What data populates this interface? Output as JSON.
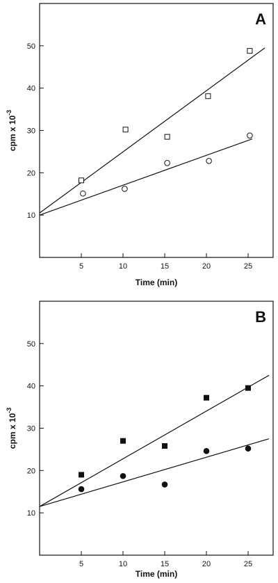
{
  "chart_data": [
    {
      "type": "scatter",
      "panel_label": "A",
      "xlabel": "Time (min)",
      "ylabel": "cpm x 10",
      "ylabel_exponent": "-3",
      "xlim": [
        0,
        28
      ],
      "ylim": [
        0,
        60
      ],
      "xticks": [
        "5",
        "10",
        "15",
        "20",
        "25"
      ],
      "yticks": [
        "10",
        "20",
        "30",
        "40",
        "50"
      ],
      "grid": false,
      "series": [
        {
          "marker": "open-square",
          "points": [
            {
              "x": 5,
              "y": 18.2
            },
            {
              "x": 10.3,
              "y": 30.2
            },
            {
              "x": 15.3,
              "y": 28.5
            },
            {
              "x": 20.2,
              "y": 38.1
            },
            {
              "x": 25.2,
              "y": 48.8
            }
          ],
          "fit": {
            "x": [
              0,
              27
            ],
            "y": [
              10.5,
              49.5
            ]
          }
        },
        {
          "marker": "open-circle",
          "points": [
            {
              "x": 5.2,
              "y": 15.1
            },
            {
              "x": 10.2,
              "y": 16.2
            },
            {
              "x": 15.3,
              "y": 22.3
            },
            {
              "x": 20.3,
              "y": 22.8
            },
            {
              "x": 25.2,
              "y": 28.8
            }
          ],
          "fit": {
            "x": [
              0,
              25.5
            ],
            "y": [
              10.0,
              28.0
            ]
          }
        }
      ]
    },
    {
      "type": "scatter",
      "panel_label": "B",
      "xlabel": "Time (min)",
      "ylabel": "cpm x 10",
      "ylabel_exponent": "-3",
      "xlim": [
        0,
        28
      ],
      "ylim": [
        0,
        60
      ],
      "xticks": [
        "5",
        "10",
        "15",
        "20",
        "25"
      ],
      "yticks": [
        "10",
        "20",
        "30",
        "40",
        "50"
      ],
      "grid": false,
      "series": [
        {
          "marker": "filled-square",
          "points": [
            {
              "x": 5,
              "y": 19.0
            },
            {
              "x": 10,
              "y": 27.0
            },
            {
              "x": 15,
              "y": 25.8
            },
            {
              "x": 20,
              "y": 37.2
            },
            {
              "x": 25,
              "y": 39.5
            }
          ],
          "fit": {
            "x": [
              0,
              27.5
            ],
            "y": [
              11.5,
              42.5
            ]
          }
        },
        {
          "marker": "filled-circle",
          "points": [
            {
              "x": 5,
              "y": 15.6
            },
            {
              "x": 10,
              "y": 18.7
            },
            {
              "x": 15,
              "y": 16.7
            },
            {
              "x": 20,
              "y": 24.6
            },
            {
              "x": 25,
              "y": 25.2
            }
          ],
          "fit": {
            "x": [
              0,
              27.5
            ],
            "y": [
              11.5,
              27.5
            ]
          }
        }
      ]
    }
  ]
}
